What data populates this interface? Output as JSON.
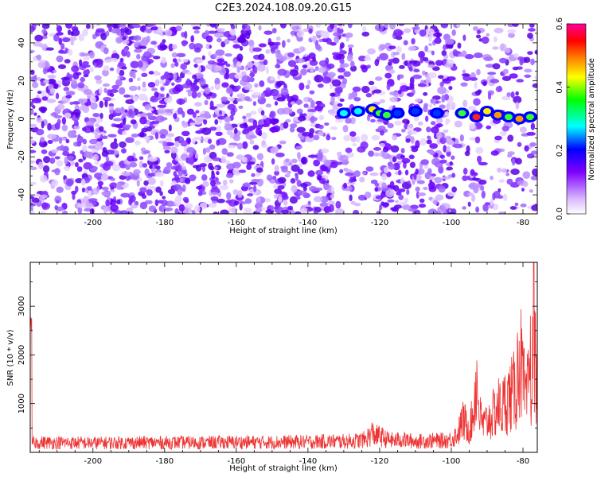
{
  "title": "C2E3.2024.108.09.20.G15",
  "chart_data": [
    {
      "type": "heatmap",
      "xlabel": "Height of straight line (km)",
      "ylabel": "Frequency (Hz)",
      "xlim": [
        -217.5,
        -76
      ],
      "ylim": [
        -50,
        50
      ],
      "xticks": [
        -200,
        -180,
        -160,
        -140,
        -120,
        -100,
        -80
      ],
      "yticks": [
        -40,
        -20,
        0,
        20,
        40
      ],
      "colorbar": {
        "label": "Normalized spectral amplitude",
        "range": [
          0.0,
          0.6
        ],
        "ticks": [
          0.0,
          0.2,
          0.4,
          0.6
        ],
        "tick_labels": [
          "0.0",
          "0.2",
          "0.4",
          "0.6"
        ],
        "colors": [
          "#ffffff",
          "#d9b8ff",
          "#8000ff",
          "#0000ff",
          "#00ffff",
          "#00ff00",
          "#ffff00",
          "#ff8000",
          "#ff0000",
          "#ff0099"
        ]
      },
      "signal_band": [
        {
          "x": -130.0,
          "y": 3,
          "amp": 0.22
        },
        {
          "x": -126.0,
          "y": 4,
          "amp": 0.2
        },
        {
          "x": -122.0,
          "y": 5,
          "amp": 0.32
        },
        {
          "x": -120.0,
          "y": 3,
          "amp": 0.3
        },
        {
          "x": -118.0,
          "y": 2,
          "amp": 0.26
        },
        {
          "x": -115.0,
          "y": 3,
          "amp": 0.15
        },
        {
          "x": -110.0,
          "y": 4,
          "amp": 0.12
        },
        {
          "x": -104.0,
          "y": 3,
          "amp": 0.1
        },
        {
          "x": -97.0,
          "y": 3,
          "amp": 0.28
        },
        {
          "x": -93.0,
          "y": 1,
          "amp": 0.5
        },
        {
          "x": -90.0,
          "y": 4,
          "amp": 0.35
        },
        {
          "x": -87.0,
          "y": 2,
          "amp": 0.4
        },
        {
          "x": -84.0,
          "y": 1,
          "amp": 0.3
        },
        {
          "x": -81.0,
          "y": 0,
          "amp": 0.45
        },
        {
          "x": -78.0,
          "y": 1,
          "amp": 0.3
        }
      ],
      "signal_color": "#0000ff"
    },
    {
      "type": "line",
      "xlabel": "Height of straight line (km)",
      "ylabel": "SNR (10 * v/v)",
      "xlim": [
        -217.5,
        -76
      ],
      "ylim": [
        0,
        3900
      ],
      "xticks": [
        -200,
        -180,
        -160,
        -140,
        -120,
        -100,
        -80
      ],
      "yticks": [
        1000,
        2000,
        3000
      ],
      "color": "#ee3333",
      "series": [
        {
          "x": [
            -217,
            -210,
            -200,
            -190,
            -180,
            -170,
            -160,
            -150,
            -140,
            -135,
            -130,
            -126,
            -124,
            -122,
            -121,
            -120,
            -118,
            -116,
            -114,
            -112,
            -110,
            -106,
            -102,
            -100,
            -98,
            -97,
            -96,
            -95,
            -94,
            -93,
            -92,
            -91,
            -90,
            -89,
            -88,
            -87,
            -86,
            -85,
            -84,
            -83,
            -82,
            -81,
            -80,
            -79,
            -78,
            -77.5,
            -77,
            -76.5
          ],
          "y": [
            250,
            250,
            240,
            250,
            250,
            250,
            260,
            260,
            270,
            280,
            280,
            300,
            330,
            500,
            420,
            420,
            330,
            300,
            330,
            300,
            280,
            300,
            300,
            330,
            500,
            800,
            750,
            600,
            900,
            1900,
            900,
            700,
            800,
            900,
            1000,
            1200,
            1100,
            1300,
            1400,
            1500,
            1600,
            2600,
            1800,
            1200,
            2400,
            1300,
            3900,
            2200
          ]
        }
      ]
    }
  ]
}
